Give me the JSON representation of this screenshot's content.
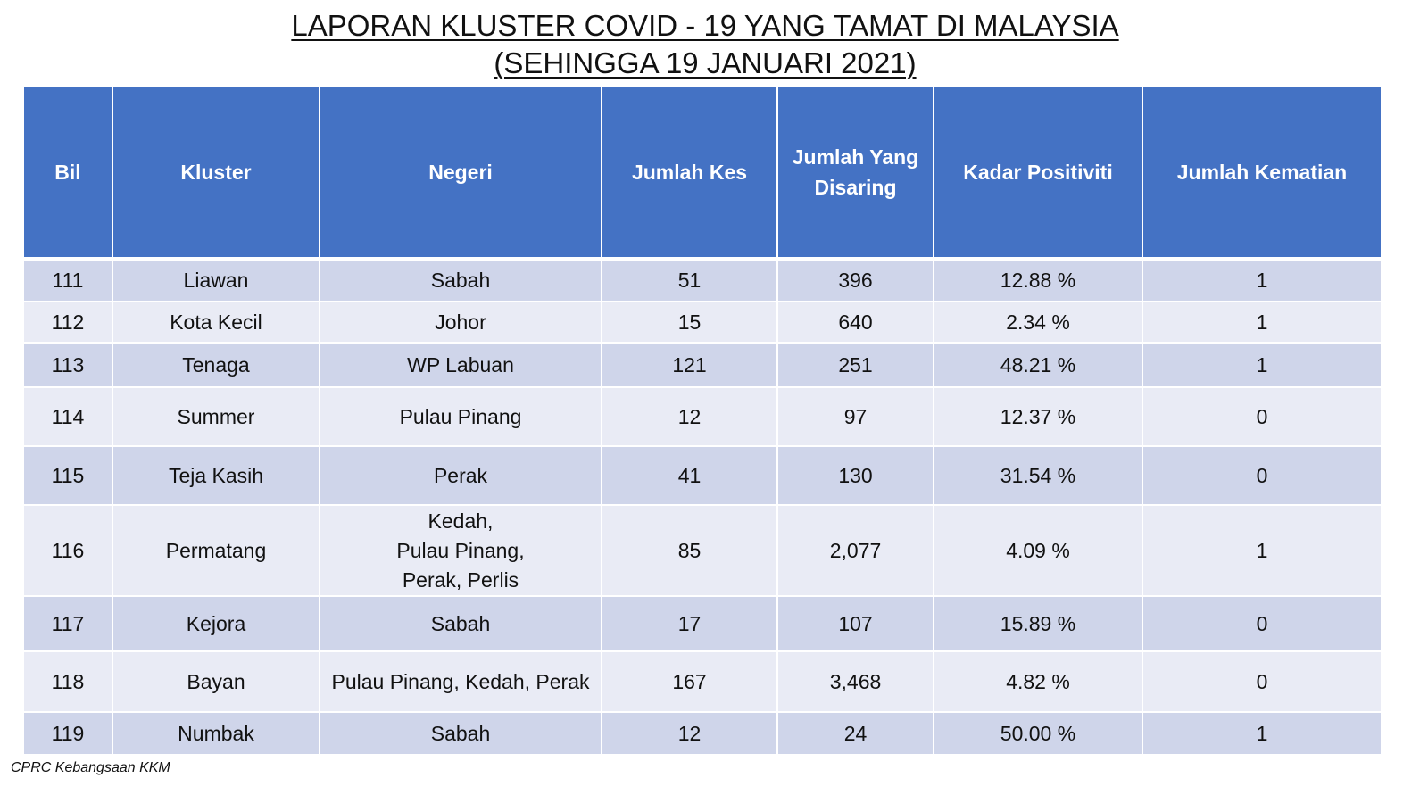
{
  "title": {
    "line1": "LAPORAN KLUSTER COVID - 19 YANG TAMAT DI MALAYSIA",
    "line2": "(SEHINGGA 19 JANUARI 2021)"
  },
  "table": {
    "headers": [
      "Bil",
      "Kluster",
      "Negeri",
      "Jumlah Kes",
      "Jumlah Yang Disaring",
      "Kadar Positiviti",
      "Jumlah Kematian"
    ],
    "rows": [
      {
        "bil": "111",
        "kluster": "Liawan",
        "negeri": "Sabah",
        "kes": "51",
        "disaring": "396",
        "positiviti": "12.88 %",
        "kematian": "1"
      },
      {
        "bil": "112",
        "kluster": "Kota Kecil",
        "negeri": "Johor",
        "kes": "15",
        "disaring": "640",
        "positiviti": "2.34 %",
        "kematian": "1"
      },
      {
        "bil": "113",
        "kluster": "Tenaga",
        "negeri": "WP Labuan",
        "kes": "121",
        "disaring": "251",
        "positiviti": "48.21 %",
        "kematian": "1"
      },
      {
        "bil": "114",
        "kluster": "Summer",
        "negeri": "Pulau Pinang",
        "kes": "12",
        "disaring": "97",
        "positiviti": "12.37 %",
        "kematian": "0"
      },
      {
        "bil": "115",
        "kluster": "Teja Kasih",
        "negeri": "Perak",
        "kes": "41",
        "disaring": "130",
        "positiviti": "31.54 %",
        "kematian": "0"
      },
      {
        "bil": "116",
        "kluster": "Permatang",
        "negeri": "Kedah,\nPulau Pinang,\nPerak, Perlis",
        "kes": "85",
        "disaring": "2,077",
        "positiviti": "4.09 %",
        "kematian": "1"
      },
      {
        "bil": "117",
        "kluster": "Kejora",
        "negeri": "Sabah",
        "kes": "17",
        "disaring": "107",
        "positiviti": "15.89 %",
        "kematian": "0"
      },
      {
        "bil": "118",
        "kluster": "Bayan",
        "negeri": "Pulau Pinang, Kedah, Perak",
        "kes": "167",
        "disaring": "3,468",
        "positiviti": "4.82 %",
        "kematian": "0"
      },
      {
        "bil": "119",
        "kluster": "Numbak",
        "negeri": "Sabah",
        "kes": "12",
        "disaring": "24",
        "positiviti": "50.00 %",
        "kematian": "1"
      }
    ]
  },
  "source": "CPRC Kebangsaan KKM"
}
